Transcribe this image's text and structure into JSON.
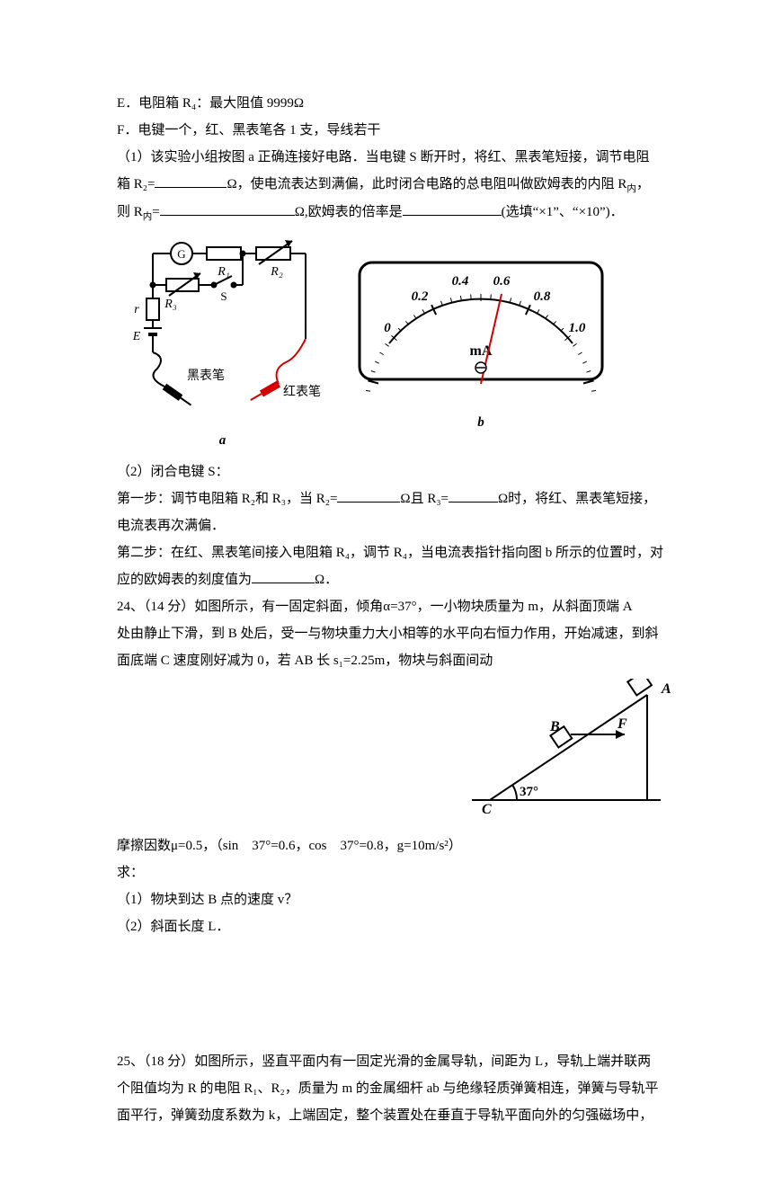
{
  "lines": {
    "e": "E．电阻箱 R₄：最大阻值 9999Ω",
    "f": "F．电键一个，红、黑表笔各 1 支，导线若干",
    "p1_a": "（1）该实验小组按图 a 正确连接好电路．当电键 S 断开时，将红、黑表笔短接，调节电阻",
    "p1_b_1": "箱 R₂=",
    "p1_b_2": "Ω，使电流表达到满偏，此时闭合电路的总电阻叫做欧姆表的内阻 R",
    "p1_b_3": "，",
    "p1_c_1": "则 R",
    "p1_c_2": "=",
    "p1_c_3": "Ω,欧姆表的倍率是",
    "p1_c_4": "(选填“×1”、“×10”)．",
    "sub_nei": "内",
    "p2_head": "（2）闭合电键 S：",
    "p2_s1_1": "第一步：调节电阻箱 R₂和 R₃，当 R₂=",
    "p2_s1_2": "Ω且 R₃=",
    "p2_s1_3": "Ω时，将红、黑表笔短接，",
    "p2_s1_4": "电流表再次满偏．",
    "p2_s2_1": "第二步：在红、黑表笔间接入电阻箱 R₄，调节 R₄，当电流表指针指向图 b 所示的位置时，对",
    "p2_s2_2": "应的欧姆表的刻度值为",
    "p2_s2_3": "Ω．",
    "q24_1": "24、（14 分）如图所示，有一固定斜面，倾角α=37°，一小物块质量为 m，从斜面顶端 A",
    "q24_2": "处由静止下滑，到 B 处后，受一与物块重力大小相等的水平向右恒力作用，开始减速，到斜",
    "q24_3": "面底端 C 速度刚好减为 0，若 AB 长 s₁=2.25m，物块与斜面间动",
    "q24_4": "摩擦因数μ=0.5，（sin　37°=0.6，cos　37°=0.8，g=10m/s²）",
    "q24_5": "求：",
    "q24_6": "（1）物块到达 B 点的速度 v？",
    "q24_7": "（2）斜面长度 L．",
    "q25_1": "25、（18 分）如图所示，竖直平面内有一固定光滑的金属导轨，间距为 L，导轨上端并联两",
    "q25_2": "个阻值均为 R 的电阻 R₁、R₂，质量为 m 的金属细杆 ab 与绝缘轻质弹簧相连，弹簧与导轨平",
    "q25_3": "面平行，弹簧劲度系数为 k，上端固定，整个装置处在垂直于导轨平面向外的匀强磁场中，"
  },
  "circuit": {
    "labels": {
      "G": "G",
      "R1": "R₁",
      "R2": "R₂",
      "R3": "R₃",
      "S": "S",
      "r": "r",
      "E": "E",
      "black": "黑表笔",
      "red": "红表笔"
    },
    "caption": "a",
    "colors": {
      "stroke": "#000000",
      "red": "#d40000",
      "bg": "#ffffff"
    },
    "line_width": 2
  },
  "meter": {
    "ticks": [
      "0",
      "0.2",
      "0.4",
      "0.6",
      "0.8",
      "1.0"
    ],
    "unit": "mA",
    "needle_value": 0.6,
    "caption": "b",
    "colors": {
      "stroke": "#000000",
      "needle": "#d40000",
      "bg": "#ffffff"
    },
    "border_width": 3,
    "needle_width": 2
  },
  "incline": {
    "labels": {
      "A": "A",
      "B": "B",
      "C": "C",
      "F": "F",
      "angle": "37°"
    },
    "colors": {
      "stroke": "#000000"
    },
    "line_width": 2
  },
  "blanks": {
    "w1": 80,
    "w2": 150,
    "w3": 110,
    "w4": 70,
    "w5": 55,
    "w6": 70
  }
}
